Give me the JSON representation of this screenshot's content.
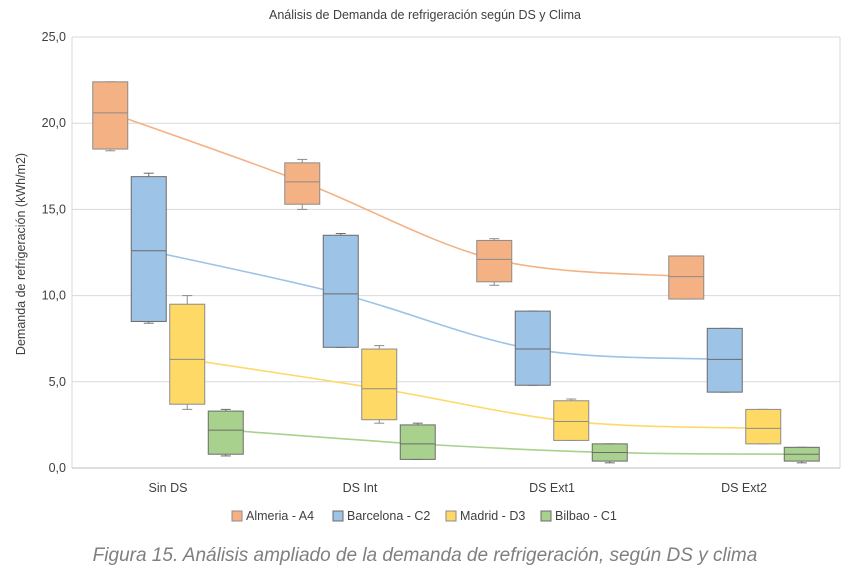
{
  "colors": {
    "Almeria - A4": {
      "fill": "#f4b183",
      "stroke": "#8c8c8c",
      "line": "#f4b183"
    },
    "Barcelona - C2": {
      "fill": "#9dc3e6",
      "stroke": "#6b6b6b",
      "line": "#9dc3e6"
    },
    "Madrid - D3": {
      "fill": "#ffd966",
      "stroke": "#8c8c8c",
      "line": "#ffd966"
    },
    "Bilbao - C1": {
      "fill": "#a9d18e",
      "stroke": "#6b6b6b",
      "line": "#a9d18e"
    }
  },
  "chart_data": {
    "type": "box",
    "title": "Análisis de Demanda de refrigeración según DS y Clima",
    "xlabel": "",
    "ylabel": "Demanda de refrigeración (kWh/m2)",
    "ylim": [
      0,
      25
    ],
    "yticks": [
      "0,0",
      "5,0",
      "10,0",
      "15,0",
      "20,0",
      "25,0"
    ],
    "ytick_values": [
      0,
      5,
      10,
      15,
      20,
      25
    ],
    "grid": true,
    "legend_position": "bottom",
    "categories": [
      "Sin DS",
      "DS Int",
      "DS Ext1",
      "DS Ext2"
    ],
    "series": [
      {
        "name": "Almeria - A4",
        "boxes": [
          {
            "min": 18.4,
            "q1": 18.5,
            "median": 20.6,
            "q3": 22.4,
            "max": 22.4
          },
          {
            "min": 15.0,
            "q1": 15.3,
            "median": 16.6,
            "q3": 17.7,
            "max": 17.9
          },
          {
            "min": 10.6,
            "q1": 10.8,
            "median": 12.1,
            "q3": 13.2,
            "max": 13.3
          },
          {
            "min": 9.8,
            "q1": 9.8,
            "median": 11.1,
            "q3": 12.3,
            "max": 12.3
          }
        ]
      },
      {
        "name": "Barcelona - C2",
        "boxes": [
          {
            "min": 8.4,
            "q1": 8.5,
            "median": 12.6,
            "q3": 16.9,
            "max": 17.1
          },
          {
            "min": 7.0,
            "q1": 7.0,
            "median": 10.1,
            "q3": 13.5,
            "max": 13.6
          },
          {
            "min": 4.8,
            "q1": 4.8,
            "median": 6.9,
            "q3": 9.1,
            "max": 9.1
          },
          {
            "min": 4.4,
            "q1": 4.4,
            "median": 6.3,
            "q3": 8.1,
            "max": 8.1
          }
        ]
      },
      {
        "name": "Madrid - D3",
        "boxes": [
          {
            "min": 3.4,
            "q1": 3.7,
            "median": 6.3,
            "q3": 9.5,
            "max": 10.0
          },
          {
            "min": 2.6,
            "q1": 2.8,
            "median": 4.6,
            "q3": 6.9,
            "max": 7.1
          },
          {
            "min": 1.6,
            "q1": 1.6,
            "median": 2.7,
            "q3": 3.9,
            "max": 4.0
          },
          {
            "min": 1.4,
            "q1": 1.4,
            "median": 2.3,
            "q3": 3.4,
            "max": 3.4
          }
        ]
      },
      {
        "name": "Bilbao - C1",
        "boxes": [
          {
            "min": 0.7,
            "q1": 0.8,
            "median": 2.2,
            "q3": 3.3,
            "max": 3.4
          },
          {
            "min": 0.5,
            "q1": 0.5,
            "median": 1.4,
            "q3": 2.5,
            "max": 2.6
          },
          {
            "min": 0.3,
            "q1": 0.4,
            "median": 0.9,
            "q3": 1.4,
            "max": 1.4
          },
          {
            "min": 0.3,
            "q1": 0.4,
            "median": 0.8,
            "q3": 1.2,
            "max": 1.2
          }
        ]
      }
    ]
  },
  "caption": "Figura 15. Análisis ampliado de la demanda de refrigeración, según DS y clima"
}
